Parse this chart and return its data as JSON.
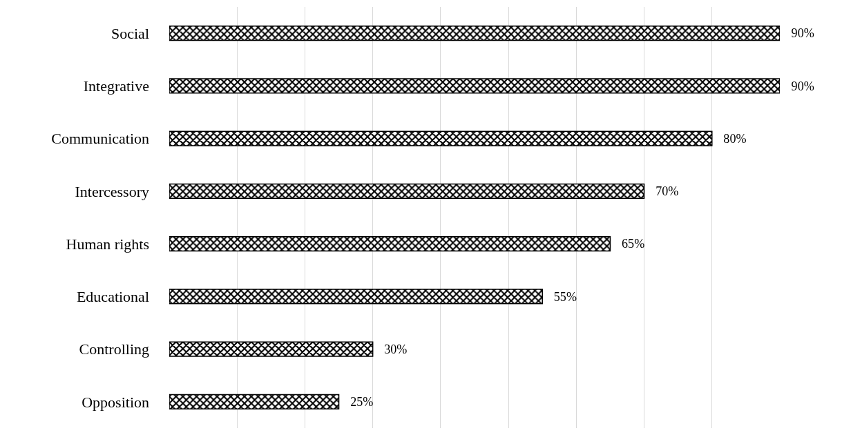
{
  "chart_data": {
    "type": "bar",
    "orientation": "horizontal",
    "categories": [
      "Social",
      "Integrative",
      "Communication",
      "Intercessory",
      "Human rights",
      "Educational",
      "Controlling",
      "Opposition"
    ],
    "values": [
      90,
      90,
      80,
      70,
      65,
      55,
      30,
      25
    ],
    "value_labels": [
      "90%",
      "90%",
      "80%",
      "70%",
      "65%",
      "55%",
      "30%",
      "25%"
    ],
    "color": "#000000",
    "xlim": [
      0,
      90
    ],
    "grid": "x",
    "legend": false,
    "tick_labels": "y"
  }
}
